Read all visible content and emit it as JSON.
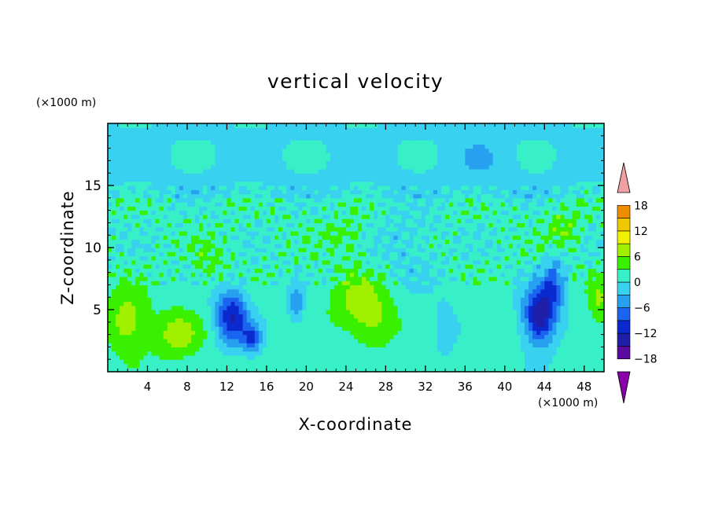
{
  "chart_data": {
    "type": "heatmap",
    "title": "vertical velocity",
    "xlabel": "X-coordinate",
    "ylabel": "Z-coordinate",
    "x_units": "(×1000 m)",
    "y_units": "(×1000 m)",
    "xlim": [
      0,
      50
    ],
    "ylim": [
      0,
      20
    ],
    "x_ticks": [
      "4",
      "8",
      "12",
      "16",
      "20",
      "24",
      "28",
      "32",
      "36",
      "40",
      "44",
      "48"
    ],
    "y_ticks": [
      "5",
      "10",
      "15"
    ],
    "colorbar": {
      "labels": [
        "18",
        "12",
        "6",
        "0",
        "-6",
        "-12",
        "-18"
      ],
      "range": [
        -21,
        21
      ],
      "levels": [
        -21,
        -18,
        -15,
        -12,
        -9,
        -6,
        -3,
        0,
        3,
        6,
        9,
        12,
        15,
        18,
        21
      ],
      "colors": [
        "#8a00a8",
        "#5a0aa0",
        "#1e1ea8",
        "#0a2ad0",
        "#1a64f0",
        "#28a0f0",
        "#38d2f0",
        "#38f0c8",
        "#38f000",
        "#a0f000",
        "#f0f000",
        "#f0c800",
        "#f08c00",
        "#f03c00",
        "#f0a0a0"
      ],
      "extend": "both"
    },
    "features": [
      {
        "x": 2.0,
        "z": 4.0,
        "sx": 2.0,
        "sz": 2.4,
        "w": 7
      },
      {
        "x": 7.0,
        "z": 3.0,
        "sx": 2.4,
        "sz": 2.0,
        "w": 6
      },
      {
        "x": 12.5,
        "z": 4.5,
        "sx": 1.6,
        "sz": 2.2,
        "w": -13
      },
      {
        "x": 14.5,
        "z": 2.7,
        "sx": 1.0,
        "sz": 1.2,
        "w": -9
      },
      {
        "x": 19.0,
        "z": 5.5,
        "sx": 0.7,
        "sz": 1.5,
        "w": -7
      },
      {
        "x": 25.5,
        "z": 5.5,
        "sx": 3.0,
        "sz": 2.5,
        "w": 6
      },
      {
        "x": 27.0,
        "z": 3.5,
        "sx": 2.0,
        "sz": 1.8,
        "w": 3
      },
      {
        "x": 30.0,
        "z": 10.0,
        "sx": 3.0,
        "sz": 3.0,
        "w": -2.5
      },
      {
        "x": 34.0,
        "z": 3.5,
        "sx": 1.0,
        "sz": 2.0,
        "w": -4
      },
      {
        "x": 37.5,
        "z": 17.0,
        "sx": 2.8,
        "sz": 2.0,
        "w": -2.5
      },
      {
        "x": 43.5,
        "z": 4.5,
        "sx": 1.6,
        "sz": 2.3,
        "w": -16
      },
      {
        "x": 45.0,
        "z": 7.0,
        "sx": 1.2,
        "sz": 2.0,
        "w": -8
      },
      {
        "x": 46.0,
        "z": 11.5,
        "sx": 1.6,
        "sz": 1.5,
        "w": 4.5
      },
      {
        "x": 49.5,
        "z": 5.5,
        "sx": 1.0,
        "sz": 2.2,
        "w": 5
      },
      {
        "x": 10.5,
        "z": 9.0,
        "sx": 2.0,
        "sz": 1.8,
        "w": 3
      },
      {
        "x": 24.0,
        "z": 11.0,
        "sx": 2.5,
        "sz": 1.5,
        "w": 3
      }
    ]
  }
}
